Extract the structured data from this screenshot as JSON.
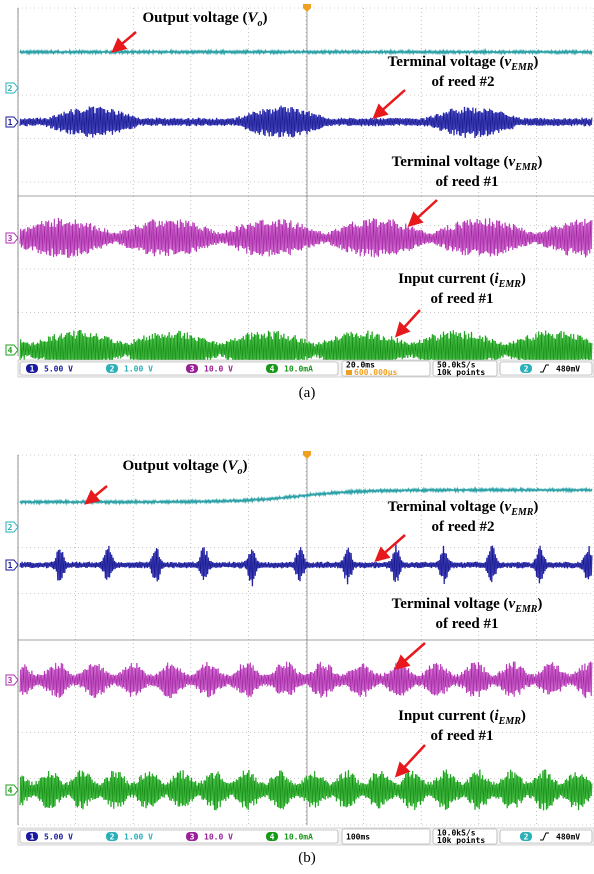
{
  "panels": [
    {
      "caption": "(a)",
      "annotations": [
        {
          "label": "Output voltage (",
          "symbol": "V",
          "subscript": "o",
          "close": ")"
        },
        {
          "label": "Terminal voltage (",
          "symbol": "v",
          "subscript": "EMR",
          "close": ")",
          "line2": "of reed #2"
        },
        {
          "label": "Terminal voltage (",
          "symbol": "v",
          "subscript": "EMR",
          "close": ")",
          "line2": "of reed #1"
        },
        {
          "label": "Input current (",
          "symbol": "i",
          "subscript": "EMR",
          "close": ")",
          "line2": "of reed #1"
        }
      ],
      "channels": [
        {
          "number": "1",
          "scale": "5.00 V"
        },
        {
          "number": "2",
          "scale": "1.00 V"
        },
        {
          "number": "3",
          "scale": "10.0 V"
        },
        {
          "number": "4",
          "scale": "10.0mA"
        }
      ],
      "timebase": "20.0ms",
      "trigger_position": "600.000µs",
      "sample_rate": "50.0kS/s",
      "record_length": "10k points",
      "trigger_channel": "2",
      "trigger_level": "480mV"
    },
    {
      "caption": "(b)",
      "annotations": [
        {
          "label": "Output voltage (",
          "symbol": "V",
          "subscript": "o",
          "close": ")"
        },
        {
          "label": "Terminal voltage (",
          "symbol": "v",
          "subscript": "EMR",
          "close": ")",
          "line2": "of reed #2"
        },
        {
          "label": "Terminal voltage (",
          "symbol": "v",
          "subscript": "EMR",
          "close": ")",
          "line2": "of reed #1"
        },
        {
          "label": "Input current (",
          "symbol": "i",
          "subscript": "EMR",
          "close": ")",
          "line2": "of reed #1"
        }
      ],
      "channels": [
        {
          "number": "1",
          "scale": "5.00 V"
        },
        {
          "number": "2",
          "scale": "1.00 V"
        },
        {
          "number": "3",
          "scale": "10.0 V"
        },
        {
          "number": "4",
          "scale": "10.0mA"
        }
      ],
      "timebase": "100ms",
      "sample_rate": "10.0kS/s",
      "record_length": "10k points",
      "trigger_channel": "2",
      "trigger_level": "480mV"
    }
  ]
}
